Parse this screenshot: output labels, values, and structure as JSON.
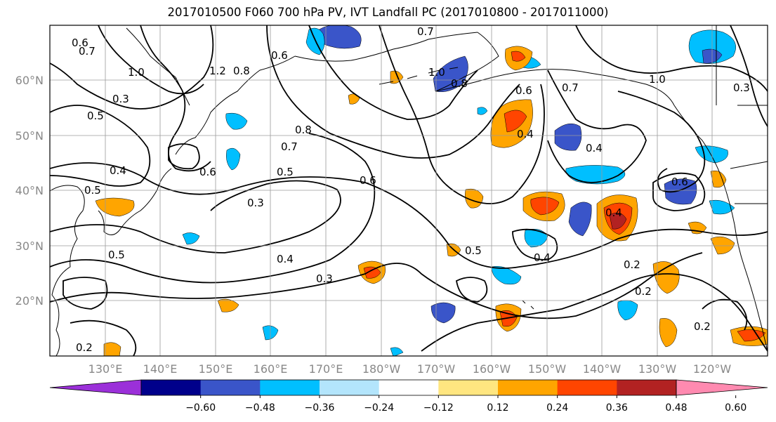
{
  "title": "2017010500 F060 700 hPa PV, IVT Landfall PC (2017010800 - 2017011000)",
  "map": {
    "lon_range": [
      120,
      250
    ],
    "lat_range": [
      10,
      70
    ],
    "latitude_labels": [
      "20°N",
      "30°N",
      "40°N",
      "50°N",
      "60°N"
    ],
    "longitude_labels": [
      "130°E",
      "140°E",
      "150°E",
      "160°E",
      "170°E",
      "180°W",
      "170°W",
      "160°W",
      "150°W",
      "140°W",
      "130°W",
      "120°W"
    ],
    "contour_labels": [
      "0.6",
      "0.7",
      "1.0",
      "0.3",
      "0.5",
      "1.2",
      "0.8",
      "0.6",
      "0.4",
      "0.5",
      "0.6",
      "0.8",
      "0.7",
      "0.5",
      "0.3",
      "0.6",
      "0.4",
      "0.3",
      "0.7",
      "1.0",
      "0.8",
      "0.6",
      "0.4",
      "0.4",
      "0.7",
      "0.5",
      "0.4",
      "0.2",
      "0.2",
      "0.2",
      "0.6",
      "1.0",
      "0.4",
      "0.3",
      "0.5",
      "0.2"
    ],
    "colors": {
      "grid": "#9a9a9a",
      "contour": "#000000",
      "coast": "#000000"
    }
  },
  "colorbar": {
    "tick_labels": [
      "−0.60",
      "−0.48",
      "−0.36",
      "−0.24",
      "−0.12",
      "0.12",
      "0.24",
      "0.36",
      "0.48",
      "0.60"
    ],
    "colors": [
      "#9b30d9",
      "#00008b",
      "#3a55c9",
      "#00bfff",
      "#b3e5fc",
      "#ffffff",
      "#ffe680",
      "#ffa500",
      "#ff4500",
      "#b22222",
      "#ff8ab0"
    ]
  }
}
